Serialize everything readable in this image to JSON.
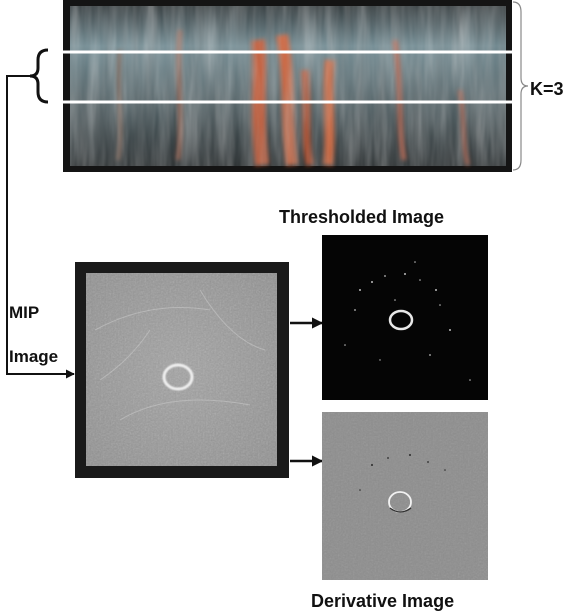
{
  "labels": {
    "k": "K=3",
    "mip_line1": "MIP",
    "mip_line2": "Image",
    "thresholded": "Thresholded Image",
    "derivative": "Derivative Image"
  },
  "colors": {
    "volume_bg": "#141414",
    "volume_tissue": "#6a7f86",
    "volume_vessel": "#d4552a",
    "slab_lines": "#ffffff",
    "mip_frame": "#1a1a1a",
    "mip_gray": "#9a9a9a",
    "thresholded_bg": "#050505",
    "derivative_gray": "#8d8d8d",
    "arrows": "#111111"
  }
}
